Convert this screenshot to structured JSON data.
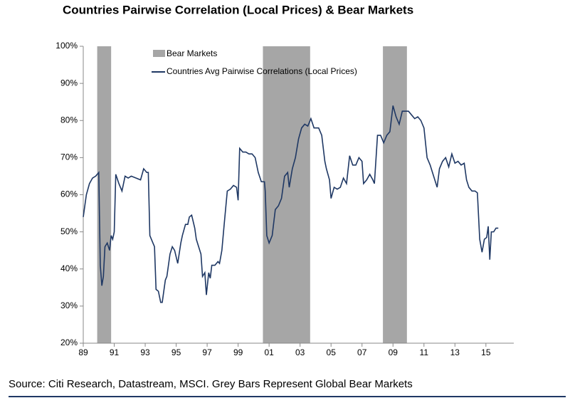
{
  "chart_data": {
    "type": "line",
    "title": "Countries Pairwise Correlation (Local Prices) & Bear Markets",
    "source": "Source: Citi Research, Datastream, MSCI. Grey Bars Represent Global Bear Markets",
    "xlim": [
      1989,
      2016.8
    ],
    "xticks": [
      {
        "value": 1989,
        "label": "89"
      },
      {
        "value": 1991,
        "label": "91"
      },
      {
        "value": 1993,
        "label": "93"
      },
      {
        "value": 1995,
        "label": "95"
      },
      {
        "value": 1997,
        "label": "97"
      },
      {
        "value": 1999,
        "label": "99"
      },
      {
        "value": 2001,
        "label": "01"
      },
      {
        "value": 2003,
        "label": "03"
      },
      {
        "value": 2005,
        "label": "05"
      },
      {
        "value": 2007,
        "label": "07"
      },
      {
        "value": 2009,
        "label": "09"
      },
      {
        "value": 2011,
        "label": "11"
      },
      {
        "value": 2013,
        "label": "13"
      },
      {
        "value": 2015,
        "label": "15"
      }
    ],
    "ylim": [
      20,
      100
    ],
    "yticks": [
      {
        "value": 20,
        "label": "20%"
      },
      {
        "value": 30,
        "label": "30%"
      },
      {
        "value": 40,
        "label": "40%"
      },
      {
        "value": 50,
        "label": "50%"
      },
      {
        "value": 60,
        "label": "60%"
      },
      {
        "value": 70,
        "label": "70%"
      },
      {
        "value": 80,
        "label": "80%"
      },
      {
        "value": 90,
        "label": "90%"
      },
      {
        "value": 100,
        "label": "100%"
      }
    ],
    "grid": false,
    "bear_markets": {
      "name": "Bear Markets",
      "color": "#a6a6a6",
      "ranges": [
        [
          1989.9,
          1990.8
        ],
        [
          2000.6,
          2003.65
        ],
        [
          2008.35,
          2009.9
        ]
      ]
    },
    "series": [
      {
        "name": "Countries Avg Pairwise Correlations (Local Prices)",
        "color": "#1f3864",
        "x": [
          1989.0,
          1989.2,
          1989.4,
          1989.6,
          1989.8,
          1990.0,
          1990.1,
          1990.2,
          1990.3,
          1990.4,
          1990.55,
          1990.7,
          1990.8,
          1990.9,
          1991.0,
          1991.1,
          1991.3,
          1991.5,
          1991.7,
          1991.9,
          1992.1,
          1992.4,
          1992.7,
          1992.9,
          1993.1,
          1993.2,
          1993.3,
          1993.5,
          1993.6,
          1993.7,
          1993.85,
          1994.0,
          1994.1,
          1994.3,
          1994.4,
          1994.6,
          1994.75,
          1994.9,
          1995.1,
          1995.3,
          1995.4,
          1995.6,
          1995.75,
          1995.85,
          1996.0,
          1996.2,
          1996.3,
          1996.45,
          1996.6,
          1996.7,
          1996.85,
          1996.95,
          1997.1,
          1997.2,
          1997.3,
          1997.5,
          1997.7,
          1997.8,
          1997.95,
          1998.1,
          1998.3,
          1998.5,
          1998.7,
          1998.9,
          1999.0,
          1999.1,
          1999.3,
          1999.5,
          1999.7,
          1999.9,
          2000.1,
          2000.3,
          2000.5,
          2000.7,
          2000.75,
          2000.85,
          2001.0,
          2001.2,
          2001.4,
          2001.6,
          2001.8,
          2002.0,
          2002.2,
          2002.3,
          2002.5,
          2002.7,
          2002.9,
          2003.1,
          2003.3,
          2003.5,
          2003.7,
          2003.9,
          2004.2,
          2004.4,
          2004.6,
          2004.7,
          2004.9,
          2005.0,
          2005.2,
          2005.4,
          2005.6,
          2005.8,
          2006.0,
          2006.2,
          2006.4,
          2006.6,
          2006.8,
          2007.0,
          2007.1,
          2007.3,
          2007.5,
          2007.7,
          2007.8,
          2008.0,
          2008.2,
          2008.4,
          2008.6,
          2008.8,
          2009.0,
          2009.2,
          2009.4,
          2009.6,
          2009.8,
          2010.0,
          2010.2,
          2010.4,
          2010.6,
          2010.8,
          2011.0,
          2011.2,
          2011.4,
          2011.55,
          2011.7,
          2011.85,
          2012.0,
          2012.2,
          2012.4,
          2012.6,
          2012.8,
          2013.0,
          2013.2,
          2013.4,
          2013.6,
          2013.75,
          2013.9,
          2014.1,
          2014.3,
          2014.45,
          2014.6,
          2014.75,
          2014.9,
          2015.05,
          2015.15,
          2015.25,
          2015.35,
          2015.5,
          2015.65,
          2015.8
        ],
        "values": [
          54,
          60,
          63,
          64.5,
          65,
          66,
          41,
          35.5,
          38,
          46,
          47,
          45,
          49,
          48,
          50,
          65.5,
          63,
          61,
          65,
          64.5,
          65,
          64.5,
          64,
          67,
          66,
          66,
          49,
          47,
          46,
          34.5,
          34,
          31,
          31,
          37,
          38,
          44,
          46,
          45,
          41.5,
          47,
          49,
          52,
          52,
          54,
          54.5,
          51,
          48,
          46,
          44,
          38,
          39,
          33,
          39,
          37.5,
          41,
          41,
          42,
          41.5,
          45,
          52,
          61,
          61.5,
          62.5,
          62,
          58.5,
          72.5,
          71.5,
          71.5,
          71,
          71,
          70,
          66,
          63.5,
          63.5,
          61,
          49,
          47,
          49,
          56,
          57,
          59,
          65,
          66,
          62,
          67,
          70,
          75,
          78,
          79,
          78.5,
          80.5,
          78,
          78,
          76,
          69,
          67,
          64,
          59,
          62,
          61.5,
          62,
          64.5,
          63,
          70.5,
          68,
          68,
          70,
          69,
          63,
          64,
          65.5,
          64,
          63,
          76,
          76,
          74,
          76,
          77,
          84,
          81,
          79,
          82.5,
          82.5,
          82.5,
          81.5,
          80.5,
          81,
          80,
          78,
          70,
          68,
          66,
          64,
          62,
          67,
          69,
          70,
          67.5,
          71,
          68.5,
          69,
          68,
          68.5,
          64,
          62,
          61,
          61,
          60.5,
          48,
          44.5,
          48,
          48.5,
          51.5,
          42.5,
          50,
          50,
          51,
          51
        ]
      }
    ]
  }
}
